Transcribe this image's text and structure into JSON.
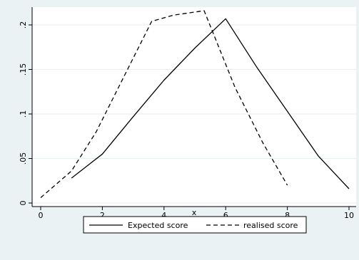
{
  "chart_data": {
    "type": "line",
    "title": "",
    "xlabel": "x",
    "ylabel": "",
    "xlim": [
      0,
      10
    ],
    "ylim": [
      0,
      0.22
    ],
    "xticks": [
      0,
      2,
      4,
      6,
      8,
      10
    ],
    "xtick_labels": [
      "0",
      "2",
      "4",
      "6",
      "8",
      "10"
    ],
    "yticks": [
      0,
      0.05,
      0.1,
      0.15,
      0.2
    ],
    "ytick_labels": [
      "0",
      ".05",
      ".1",
      ".15",
      ".2"
    ],
    "grid": true,
    "legend_position": "bottom",
    "series": [
      {
        "name": "Expected score",
        "style": "solid",
        "color": "#000000",
        "x": [
          1,
          2,
          3,
          4,
          5,
          6,
          7,
          8,
          9,
          10
        ],
        "y": [
          0.028,
          0.055,
          0.097,
          0.138,
          0.174,
          0.207,
          0.153,
          0.103,
          0.053,
          0.016
        ]
      },
      {
        "name": "realised score",
        "style": "dashed",
        "color": "#000000",
        "x": [
          0,
          1,
          1.8,
          3.6,
          4.3,
          5.3,
          6.3,
          7.2,
          8
        ],
        "y": [
          0.006,
          0.036,
          0.08,
          0.204,
          0.211,
          0.216,
          0.13,
          0.068,
          0.02
        ]
      }
    ]
  }
}
